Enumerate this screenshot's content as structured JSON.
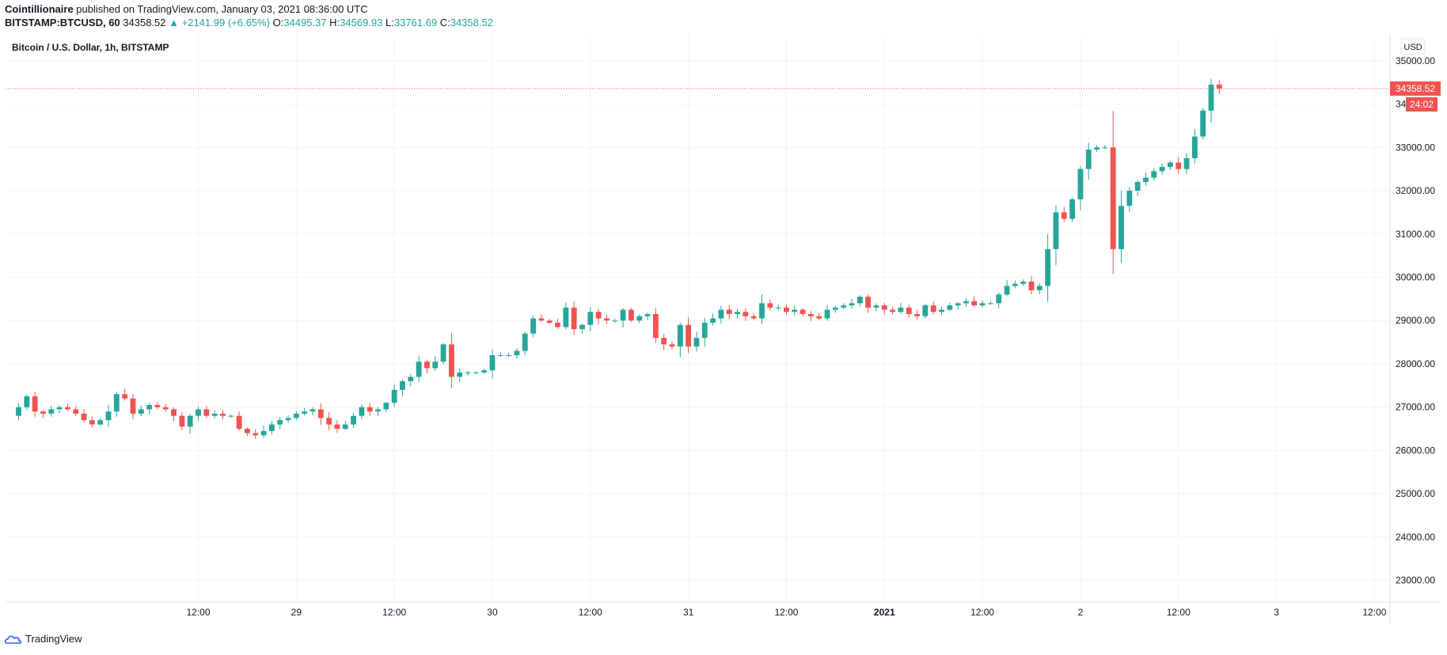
{
  "header": {
    "author": "Cointillionaire",
    "published_text": "published on TradingView.com, January 03, 2021 08:36:00 UTC",
    "symbol": "BITSTAMP:BTCUSD, 60",
    "last": "34358.52",
    "change": "▲ +2141.99 (+6.65%)",
    "o_label": "O:",
    "o_value": "34495.37",
    "h_label": "H:",
    "h_value": "34569.93",
    "l_label": "L:",
    "l_value": "33761.69",
    "c_label": "C:",
    "c_value": "34358.52"
  },
  "currency_button": "USD",
  "footer": {
    "brand": "TradingView"
  },
  "colors": {
    "up": "#26a69a",
    "down": "#ef5350",
    "grid": "#f0f3fa",
    "text": "#131722"
  },
  "chart_data": {
    "type": "candlestick",
    "title": "Bitcoin / U.S. Dollar, 1h, BITSTAMP",
    "y_ticks": [
      "35000.00",
      "34000.00",
      "33000.00",
      "32000.00",
      "31000.00",
      "30000.00",
      "29000.00",
      "28000.00",
      "27000.00",
      "26000.00",
      "25000.00",
      "24000.00",
      "23000.00"
    ],
    "ylim": [
      22500,
      35600
    ],
    "x_ticks": [
      {
        "label": "12:00",
        "hour": 12,
        "bold": false
      },
      {
        "label": "29",
        "hour": 24,
        "bold": false
      },
      {
        "label": "12:00",
        "hour": 36,
        "bold": false
      },
      {
        "label": "30",
        "hour": 48,
        "bold": false
      },
      {
        "label": "12:00",
        "hour": 60,
        "bold": false
      },
      {
        "label": "31",
        "hour": 72,
        "bold": false
      },
      {
        "label": "12:00",
        "hour": 84,
        "bold": false
      },
      {
        "label": "2021",
        "hour": 96,
        "bold": true
      },
      {
        "label": "12:00",
        "hour": 108,
        "bold": false
      },
      {
        "label": "2",
        "hour": 120,
        "bold": false
      },
      {
        "label": "12:00",
        "hour": 132,
        "bold": false
      },
      {
        "label": "3",
        "hour": 144,
        "bold": false
      },
      {
        "label": "12:00",
        "hour": 156,
        "bold": false
      }
    ],
    "x_range_hours": [
      -11.6,
      157.9
    ],
    "last_price_label": "34358.52",
    "countdown_label": "24:02",
    "last_price": 34358.52,
    "closes": [
      26800,
      27000,
      27250,
      26900,
      26850,
      26950,
      27000,
      26950,
      26850,
      26700,
      26600,
      26700,
      26900,
      27300,
      27200,
      26850,
      26950,
      27050,
      27000,
      26950,
      26800,
      26550,
      26800,
      26950,
      26800,
      26850,
      26800,
      26800,
      26500,
      26400,
      26350,
      26450,
      26600,
      26700,
      26750,
      26850,
      26900,
      26950,
      26750,
      26600,
      26500,
      26600,
      26800,
      27000,
      26900,
      26950,
      27100,
      27400,
      27600,
      27700,
      28050,
      27900,
      28050,
      28450,
      27700,
      27800,
      27800,
      27800,
      27850,
      28200,
      28200,
      28200,
      28300,
      28700,
      29050,
      29000,
      28950,
      28850,
      29300,
      28800,
      28900,
      29200,
      29050,
      29000,
      29000,
      29250,
      29000,
      29100,
      29150,
      28600,
      28450,
      28400,
      28900,
      28400,
      28600,
      28950,
      29050,
      29250,
      29150,
      29200,
      29100,
      29050,
      29400,
      29300,
      29300,
      29200,
      29250,
      29150,
      29100,
      29050,
      29250,
      29300,
      29350,
      29400,
      29550,
      29300,
      29350,
      29250,
      29200,
      29300,
      29150,
      29100,
      29350,
      29200,
      29250,
      29350,
      29400,
      29450,
      29350,
      29400,
      29400,
      29600,
      29800,
      29850,
      29900,
      29700,
      29800,
      30650,
      31500,
      31350,
      31800,
      32500,
      32950,
      33000,
      33000,
      30650,
      31650,
      32000,
      32200,
      32300,
      32450,
      32550,
      32650,
      32500,
      32750,
      33250,
      33850,
      34450,
      34358.52
    ],
    "hour_start": -11
  }
}
